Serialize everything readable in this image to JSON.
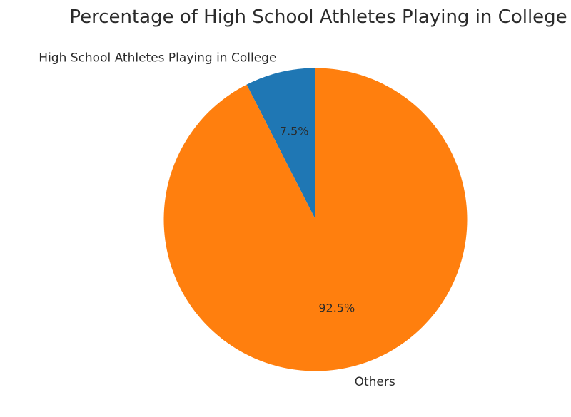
{
  "page": {
    "background": "#ffffff"
  },
  "chart_data": {
    "type": "pie",
    "title": "Percentage of High School Athletes Playing in College",
    "slices": [
      {
        "label": "High School Athletes Playing in College",
        "value": 7.5,
        "pct_label": "7.5%",
        "color": "#1f77b4"
      },
      {
        "label": "Others",
        "value": 92.5,
        "pct_label": "92.5%",
        "color": "#ff7f0e"
      }
    ],
    "start_angle": 90,
    "counterclockwise": true,
    "label_distance": 1.1,
    "pct_distance": 0.6,
    "text_color": "#2b2b2b",
    "legend": "none",
    "grid": "off"
  }
}
